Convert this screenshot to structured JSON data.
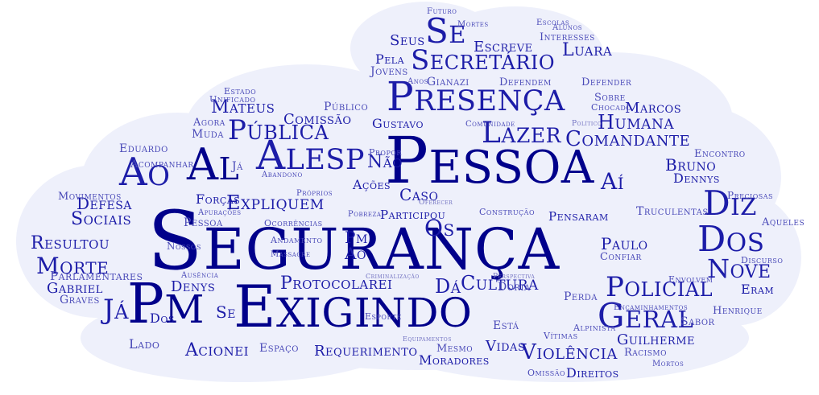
{
  "colors": {
    "cloud_fill": "#eef0fb",
    "dark": "#00008b",
    "mid": "#1c1ca8",
    "light": "#4a4ab8",
    "pale": "#6f6fc0"
  },
  "words": {
    "seguranca": "Segurança",
    "pessoa": "Pessoa",
    "exigindo": "Exigindo",
    "pm": "Pm",
    "presenca": "Presença",
    "alesp": "Alesp",
    "ao": "Ao",
    "al": "Al",
    "secretario": "Secretário",
    "se": "Se",
    "publica": "Pública",
    "lazer": "Lazer",
    "comandante": "Comandante",
    "humana": "Humana",
    "diz": "Diz",
    "dos": "Dos",
    "nove": "Nove",
    "policial": "Policial",
    "geral": "Geral",
    "violencia": "Violência",
    "cultura": "Cultura",
    "protocolarei": "Protocolarei",
    "morte": "Morte",
    "resultou": "Resultou",
    "sociais": "Sociais",
    "defesa": "Defesa",
    "movimentos": "Movimentos",
    "parlamentares": "Parlamentares",
    "gabriel": "Gabriel",
    "graves": "Graves",
    "ja": "Já",
    "acionei": "Acionei",
    "lado": "Lado",
    "requerimento": "Requerimento",
    "moradores": "Moradores",
    "direitos": "Direitos",
    "vidas": "Vidas",
    "luara": "Luara",
    "escreve": "Escreve",
    "seus": "Seus",
    "pela": "Pela",
    "jovens": "Jovens",
    "anos": "Anos",
    "gianazi": "Gianazi",
    "defendem": "Defendem",
    "defender": "Defender",
    "interesses": "Interesses",
    "escolas": "Escolas",
    "alunos": "Alunos",
    "mortes": "Mortes",
    "futuro": "Futuro",
    "mateus": "Mateus",
    "comissao": "Comissão",
    "publico": "Público",
    "gustavo": "Gustavo",
    "nao": "Não",
    "eduardo": "Eduardo",
    "muda": "Muda",
    "agora": "Agora",
    "unificado": "Unificado",
    "estado": "Estado",
    "doria": "Doria",
    "exigindo2": "Exigindo",
    "da": "Dá",
    "acompanhar": "Acompanhar",
    "sobre": "Sobre",
    "chocado": "Chocado",
    "marcos": "Marcos",
    "bruno": "Bruno",
    "encontro": "Encontro",
    "dennys": "Dennys",
    "denys": "Denys",
    "expliquem": "Expliquem",
    "acoes": "Ações",
    "caso": "Caso",
    "forcas": "Forças",
    "participou": "Participou",
    "os": "Os",
    "pensaram": "Pensaram",
    "construcao": "Construção",
    "paulo": "Paulo",
    "confiar": "Confiar",
    "aqueles": "Aqueles",
    "truculentas": "Truculentas",
    "preciosas": "Preciosas",
    "sabor": "Sabor",
    "eram": "Eram",
    "henrique": "Henrique",
    "guilherme": "Guilherme",
    "racismo": "Racismo",
    "encaminhamentos": "Encaminhamentos",
    "envolvem": "Envolvem",
    "discurso": "Discurso",
    "ai": "Aí",
    "espaco": "Espaço",
    "esporte": "Esporte",
    "mesmo": "Mesmo",
    "omissao": "Omissão",
    "perda": "Perda",
    "nossos": "Nossos",
    "andamento": "Andamento",
    "pessoa2": "Pessoa",
    "ocorrencias": "Ocorrências",
    "apuracoes": "Apurações",
    "comunidade": "Comunidade",
    "esta": "Está",
    "perspectiva": "Perspectiva",
    "massacre": "Massacre",
    "vitimas": "Vítimas",
    "alpinista": "Alpinista",
    "propor": "Propor",
    "oferecer": "Oferecer",
    "abandono": "Abandono",
    "pobreza": "Pobreza",
    "proprios": "Próprios",
    "ausencia": "Ausência",
    "politico": "Político",
    "dos2": "Dos",
    "ao2": "Ao",
    "pm2": "Pm",
    "ja2": "Já",
    "se2": "Se",
    "mortos": "Mortos",
    "criminalizacao": "Criminalização",
    "equipamentos": "Equipamentos",
    "secretario2": "Secretário"
  }
}
